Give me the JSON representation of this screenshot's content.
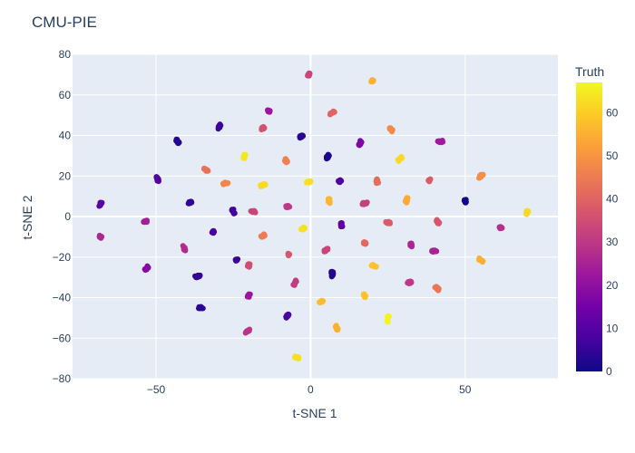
{
  "chart_data": {
    "type": "scatter",
    "title": "CMU-PIE",
    "xlabel": "t-SNE 1",
    "ylabel": "t-SNE 2",
    "xlim": [
      -77,
      80
    ],
    "ylim": [
      -80,
      80
    ],
    "x_ticks": [
      -50,
      0,
      50
    ],
    "y_ticks": [
      80,
      60,
      40,
      20,
      0,
      -20,
      -40,
      -60,
      -80
    ],
    "x_tick_labels": [
      "−50",
      "0",
      "50"
    ],
    "y_tick_labels": [
      "80",
      "60",
      "40",
      "20",
      "0",
      "−20",
      "−40",
      "−60",
      "−80"
    ],
    "grid": true,
    "colorbar": {
      "title": "Truth",
      "range": [
        0,
        67
      ],
      "ticks": [
        0,
        10,
        20,
        30,
        40,
        50,
        60
      ],
      "tick_labels": [
        "0",
        "10",
        "20",
        "30",
        "40",
        "50",
        "60"
      ],
      "colorscale": [
        "#0d0887",
        "#46039f",
        "#7201a8",
        "#9c179e",
        "#bd3786",
        "#d8576b",
        "#ed7953",
        "#fb9f3a",
        "#fdca26",
        "#f0f921"
      ]
    },
    "clusters": [
      {
        "x": -0.5,
        "y": 70,
        "truth": 33
      },
      {
        "x": 20,
        "y": 67,
        "truth": 55
      },
      {
        "x": -13.5,
        "y": 52,
        "truth": 22
      },
      {
        "x": 7,
        "y": 51,
        "truth": 40
      },
      {
        "x": -29.5,
        "y": 44.5,
        "truth": 6
      },
      {
        "x": -15.5,
        "y": 43.5,
        "truth": 36
      },
      {
        "x": 26,
        "y": 43,
        "truth": 48
      },
      {
        "x": -3,
        "y": 39.5,
        "truth": 4
      },
      {
        "x": -43,
        "y": 37,
        "truth": 3
      },
      {
        "x": 16,
        "y": 36,
        "truth": 17
      },
      {
        "x": 42,
        "y": 37,
        "truth": 23
      },
      {
        "x": 5.5,
        "y": 29.5,
        "truth": 2
      },
      {
        "x": -21.5,
        "y": 29.5,
        "truth": 64
      },
      {
        "x": -8,
        "y": 27.5,
        "truth": 46
      },
      {
        "x": 29,
        "y": 28.5,
        "truth": 62
      },
      {
        "x": -34,
        "y": 23,
        "truth": 43
      },
      {
        "x": 55,
        "y": 20,
        "truth": 49
      },
      {
        "x": -49.5,
        "y": 18.5,
        "truth": 10
      },
      {
        "x": 9.5,
        "y": 17.5,
        "truth": 9
      },
      {
        "x": 21.5,
        "y": 17.5,
        "truth": 42
      },
      {
        "x": -0.5,
        "y": 17,
        "truth": 63
      },
      {
        "x": 38.5,
        "y": 18,
        "truth": 38
      },
      {
        "x": -27.5,
        "y": 16.5,
        "truth": 47
      },
      {
        "x": -15.5,
        "y": 15.5,
        "truth": 62
      },
      {
        "x": 6,
        "y": 7.5,
        "truth": 56
      },
      {
        "x": 31,
        "y": 8,
        "truth": 54
      },
      {
        "x": 50,
        "y": 7.5,
        "truth": 1
      },
      {
        "x": -39,
        "y": 7,
        "truth": 5
      },
      {
        "x": 17.5,
        "y": 6.5,
        "truth": 32
      },
      {
        "x": -68,
        "y": 6,
        "truth": 11
      },
      {
        "x": -7,
        "y": 5,
        "truth": 30
      },
      {
        "x": -25,
        "y": 2.5,
        "truth": 7
      },
      {
        "x": -18.5,
        "y": 2.5,
        "truth": 33
      },
      {
        "x": 70,
        "y": 2,
        "truth": 62
      },
      {
        "x": -53.5,
        "y": -2.5,
        "truth": 24
      },
      {
        "x": 25,
        "y": -3,
        "truth": 38
      },
      {
        "x": 41,
        "y": -2.5,
        "truth": 37
      },
      {
        "x": 10,
        "y": -4,
        "truth": 12
      },
      {
        "x": -2.5,
        "y": -6,
        "truth": 63
      },
      {
        "x": 61.5,
        "y": -5.5,
        "truth": 28
      },
      {
        "x": -31.5,
        "y": -7.5,
        "truth": 8
      },
      {
        "x": -15.5,
        "y": -9.5,
        "truth": 45
      },
      {
        "x": -68,
        "y": -10,
        "truth": 26
      },
      {
        "x": 17.5,
        "y": -13,
        "truth": 41
      },
      {
        "x": 32.5,
        "y": -14,
        "truth": 26
      },
      {
        "x": -41,
        "y": -15.5,
        "truth": 27
      },
      {
        "x": 5,
        "y": -16.5,
        "truth": 33
      },
      {
        "x": 40,
        "y": -17,
        "truth": 25
      },
      {
        "x": -7,
        "y": -18.5,
        "truth": 37
      },
      {
        "x": -24,
        "y": -21.5,
        "truth": 6
      },
      {
        "x": 55,
        "y": -21.5,
        "truth": 55
      },
      {
        "x": 20.5,
        "y": -24.5,
        "truth": 58
      },
      {
        "x": -20,
        "y": -24,
        "truth": 35
      },
      {
        "x": -53,
        "y": -25.5,
        "truth": 18
      },
      {
        "x": -36.5,
        "y": -29.5,
        "truth": 5
      },
      {
        "x": 7,
        "y": -28.5,
        "truth": 3
      },
      {
        "x": -5,
        "y": -32.5,
        "truth": 31
      },
      {
        "x": 32,
        "y": -32.5,
        "truth": 30
      },
      {
        "x": 41,
        "y": -35.5,
        "truth": 44
      },
      {
        "x": 17.5,
        "y": -39,
        "truth": 58
      },
      {
        "x": -20,
        "y": -39,
        "truth": 22
      },
      {
        "x": 3.5,
        "y": -42,
        "truth": 57
      },
      {
        "x": -35.5,
        "y": -45,
        "truth": 4
      },
      {
        "x": -7.5,
        "y": -49,
        "truth": 8
      },
      {
        "x": 25,
        "y": -50.5,
        "truth": 66
      },
      {
        "x": 8.5,
        "y": -55,
        "truth": 55
      },
      {
        "x": -20.5,
        "y": -56.5,
        "truth": 29
      },
      {
        "x": -4.5,
        "y": -69.5,
        "truth": 63
      }
    ]
  }
}
